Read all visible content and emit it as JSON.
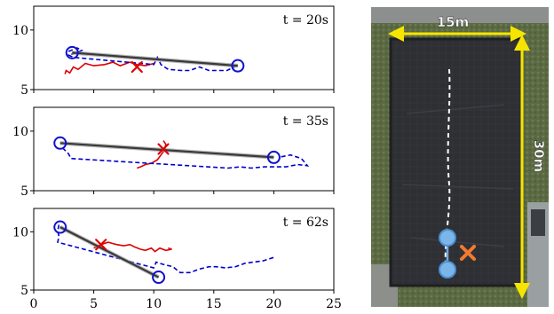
{
  "chart_data": [
    {
      "type": "line",
      "panel_label": "t = 20s",
      "xlim": [
        0,
        25
      ],
      "ylim": [
        5,
        12
      ],
      "yticks": [
        "10",
        "5"
      ],
      "xticks": [],
      "nodes": [
        [
          3.2,
          8.1
        ],
        [
          17.0,
          7.0
        ]
      ],
      "estimate": [
        8.6,
        6.9
      ],
      "trail_red": [
        [
          2.6,
          6.3
        ],
        [
          2.7,
          6.6
        ],
        [
          3.0,
          6.4
        ],
        [
          3.3,
          6.9
        ],
        [
          3.7,
          6.7
        ],
        [
          4.3,
          7.2
        ],
        [
          5.0,
          7.0
        ],
        [
          5.9,
          7.1
        ],
        [
          6.6,
          7.3
        ],
        [
          7.2,
          7.0
        ],
        [
          8.0,
          7.3
        ],
        [
          8.6,
          7.1
        ],
        [
          9.3,
          7.0
        ],
        [
          10.0,
          7.2
        ]
      ],
      "trail_blue": [
        [
          2.9,
          8.2
        ],
        [
          3.6,
          8.5
        ],
        [
          4.0,
          8.3
        ],
        [
          3.6,
          8.1
        ],
        [
          2.9,
          7.9
        ],
        [
          3.3,
          7.7
        ],
        [
          10.0,
          7.1
        ],
        [
          10.3,
          7.7
        ],
        [
          10.6,
          7.1
        ],
        [
          11.2,
          6.7
        ],
        [
          12.3,
          6.6
        ],
        [
          13.0,
          6.6
        ],
        [
          13.8,
          6.9
        ],
        [
          14.6,
          6.6
        ],
        [
          15.3,
          6.6
        ],
        [
          16.1,
          6.6
        ],
        [
          16.9,
          7.0
        ]
      ]
    },
    {
      "type": "line",
      "panel_label": "t = 35s",
      "xlim": [
        0,
        25
      ],
      "ylim": [
        5,
        12
      ],
      "yticks": [
        "10",
        "5"
      ],
      "xticks": [],
      "nodes": [
        [
          2.2,
          9.0
        ],
        [
          20.0,
          7.8
        ]
      ],
      "estimate": [
        10.8,
        8.5
      ],
      "trail_red": [
        [
          8.6,
          6.9
        ],
        [
          8.9,
          7.0
        ],
        [
          9.3,
          7.2
        ],
        [
          9.8,
          7.3
        ],
        [
          10.3,
          7.6
        ],
        [
          10.6,
          8.0
        ],
        [
          10.9,
          8.4
        ],
        [
          11.0,
          8.9
        ],
        [
          10.8,
          9.2
        ]
      ],
      "trail_blue": [
        [
          2.4,
          8.6
        ],
        [
          2.9,
          8.1
        ],
        [
          3.1,
          7.7
        ],
        [
          16.2,
          6.9
        ],
        [
          17.2,
          7.0
        ],
        [
          18.1,
          6.9
        ],
        [
          19.2,
          7.0
        ],
        [
          20.0,
          7.0
        ],
        [
          21.0,
          7.0
        ],
        [
          22.0,
          7.2
        ],
        [
          22.8,
          7.1
        ],
        [
          22.3,
          7.7
        ],
        [
          21.4,
          8.0
        ],
        [
          20.4,
          7.8
        ]
      ]
    },
    {
      "type": "line",
      "panel_label": "t = 62s",
      "xlim": [
        0,
        25
      ],
      "ylim": [
        5,
        12
      ],
      "yticks": [
        "10",
        "5"
      ],
      "xticks": [
        "0",
        "5",
        "10",
        "15",
        "20",
        "25"
      ],
      "nodes": [
        [
          2.2,
          10.4
        ],
        [
          10.4,
          6.1
        ]
      ],
      "estimate": [
        5.6,
        8.9
      ],
      "trail_red": [
        [
          5.0,
          8.6
        ],
        [
          5.6,
          8.9
        ],
        [
          6.2,
          9.1
        ],
        [
          6.9,
          8.9
        ],
        [
          7.5,
          8.8
        ],
        [
          8.0,
          8.9
        ],
        [
          8.4,
          8.7
        ],
        [
          8.9,
          8.5
        ],
        [
          9.3,
          8.4
        ],
        [
          9.8,
          8.6
        ],
        [
          10.1,
          8.3
        ],
        [
          10.5,
          8.6
        ],
        [
          11.0,
          8.4
        ],
        [
          11.5,
          8.5
        ],
        [
          11.2,
          8.6
        ]
      ],
      "trail_blue": [
        [
          2.1,
          10.6
        ],
        [
          2.0,
          10.1
        ],
        [
          2.1,
          9.6
        ],
        [
          2.0,
          9.1
        ],
        [
          10.0,
          6.9
        ],
        [
          10.2,
          7.4
        ],
        [
          10.8,
          7.2
        ],
        [
          11.6,
          7.0
        ],
        [
          12.2,
          6.5
        ],
        [
          13.0,
          6.5
        ],
        [
          13.8,
          6.8
        ],
        [
          14.6,
          7.0
        ],
        [
          15.2,
          7.0
        ],
        [
          16.0,
          6.9
        ],
        [
          16.8,
          7.0
        ],
        [
          17.6,
          7.3
        ],
        [
          18.3,
          7.4
        ],
        [
          19.1,
          7.5
        ],
        [
          20.0,
          7.8
        ]
      ]
    }
  ],
  "aerial": {
    "width_label": "15m",
    "height_label": "30m",
    "colors": {
      "dimension": "#f5e500",
      "node": "#7cb6e8",
      "node_edge": "#4a8fd1",
      "estimate": "#f07b2f",
      "track": "#ffffff"
    }
  },
  "colors": {
    "node": "#1010d0",
    "estimate": "#e00000",
    "red_trail": "#dd0000",
    "blue_trail": "#0000cc",
    "link": "#3a3a3a"
  }
}
